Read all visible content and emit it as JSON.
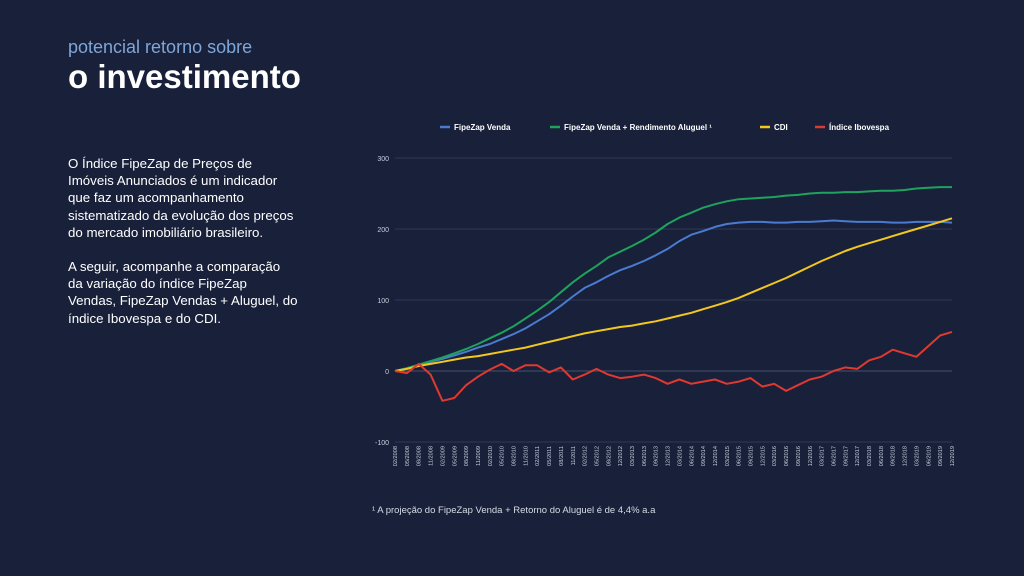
{
  "header": {
    "subtitle": "potencial retorno sobre",
    "title": "o investimento"
  },
  "body": {
    "paragraph1": "O Índice FipeZap de Preços de Imóveis Anunciados é um indicador que faz um acompanhamento sistematizado da evolução dos preços do mercado imobiliário brasileiro.",
    "paragraph2": "A seguir, acompanhe a comparação da variação do índice FipeZap Vendas, FipeZap Vendas + Aluguel, do índice Ibovespa e do CDI."
  },
  "footnote": "¹ A projeção do FipeZap Venda + Retorno do Aluguel é de 4,4% a.a",
  "chart_data": {
    "type": "line",
    "ylim": [
      -100,
      300
    ],
    "yticks": [
      -100,
      0,
      100,
      200,
      300
    ],
    "grid": true,
    "legend": "top",
    "x_labels": [
      "02/2008",
      "05/2008",
      "08/2008",
      "11/2008",
      "02/2009",
      "05/2009",
      "08/2009",
      "11/2009",
      "02/2010",
      "05/2010",
      "08/2010",
      "11/2010",
      "02/2011",
      "05/2011",
      "08/2011",
      "11/2011",
      "02/2012",
      "05/2012",
      "08/2012",
      "12/2012",
      "03/2013",
      "06/2013",
      "09/2013",
      "12/2013",
      "03/2014",
      "06/2014",
      "09/2014",
      "12/2014",
      "03/2015",
      "06/2015",
      "09/2015",
      "12/2015",
      "03/2016",
      "06/2016",
      "09/2016",
      "12/2016",
      "03/2017",
      "06/2017",
      "09/2017",
      "12/2017",
      "03/2018",
      "06/2018",
      "09/2018",
      "12/2018",
      "03/2019",
      "06/2019",
      "09/2019",
      "12/2019"
    ],
    "series": [
      {
        "name": "FipeZap Venda",
        "color": "#4a7bd0",
        "values": [
          0,
          4,
          8,
          13,
          17,
          22,
          27,
          33,
          38,
          45,
          52,
          60,
          70,
          80,
          92,
          105,
          117,
          125,
          134,
          142,
          148,
          155,
          163,
          172,
          183,
          192,
          197,
          203,
          207,
          209,
          210,
          210,
          209,
          209,
          210,
          210,
          211,
          212,
          211,
          210,
          210,
          210,
          209,
          209,
          210,
          210,
          210,
          209
        ]
      },
      {
        "name": "FipeZap Venda + Rendimento Aluguel ¹",
        "color": "#1fa35c",
        "values": [
          0,
          4,
          9,
          14,
          19,
          25,
          31,
          38,
          46,
          54,
          63,
          74,
          85,
          97,
          111,
          125,
          137,
          148,
          160,
          168,
          176,
          185,
          195,
          207,
          216,
          223,
          230,
          235,
          239,
          242,
          243,
          244,
          245,
          247,
          248,
          250,
          251,
          251,
          252,
          252,
          253,
          254,
          254,
          255,
          257,
          258,
          259,
          259
        ]
      },
      {
        "name": "CDI",
        "color": "#f2c81e",
        "values": [
          0,
          3,
          7,
          10,
          13,
          16,
          19,
          21,
          24,
          27,
          30,
          33,
          37,
          41,
          45,
          49,
          53,
          56,
          59,
          62,
          64,
          67,
          70,
          74,
          78,
          82,
          87,
          92,
          97,
          103,
          110,
          117,
          124,
          131,
          139,
          147,
          155,
          162,
          169,
          175,
          180,
          185,
          190,
          195,
          200,
          205,
          210,
          215
        ]
      },
      {
        "name": "Índice Ibovespa",
        "color": "#e0392f",
        "values": [
          0,
          -3,
          10,
          -5,
          -42,
          -38,
          -20,
          -8,
          2,
          10,
          0,
          8,
          8,
          -2,
          5,
          -12,
          -5,
          3,
          -5,
          -10,
          -8,
          -5,
          -10,
          -18,
          -12,
          -18,
          -15,
          -12,
          -18,
          -15,
          -10,
          -22,
          -18,
          -28,
          -20,
          -12,
          -8,
          0,
          5,
          3,
          15,
          20,
          30,
          25,
          20,
          35,
          50,
          55
        ]
      }
    ]
  }
}
